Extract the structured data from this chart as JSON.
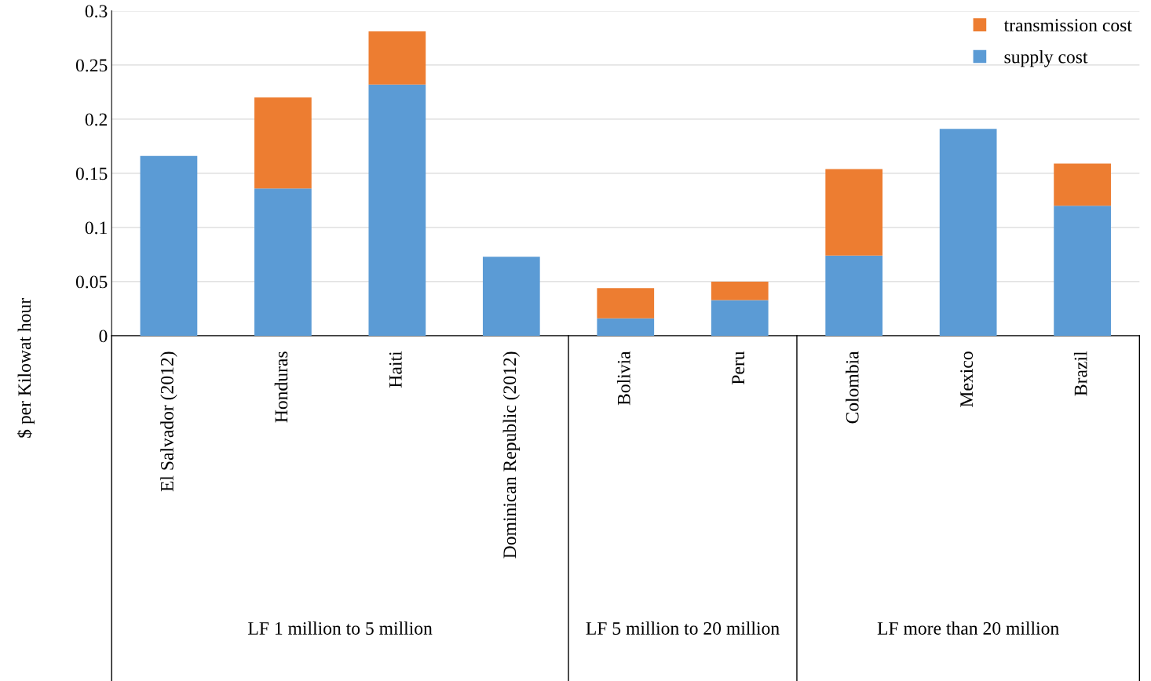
{
  "chart_data": {
    "type": "bar",
    "stacked": true,
    "ylabel": "$ per Kilowat hour",
    "categories": [
      "El Salvador (2012)",
      "Honduras",
      "Haiti",
      "Dominican Republic (2012)",
      "Bolivia",
      "Peru",
      "Colombia",
      "Mexico",
      "Brazil"
    ],
    "series": [
      {
        "name": "supply cost",
        "color": "#5b9bd5",
        "values": [
          0.166,
          0.136,
          0.232,
          0.073,
          0.016,
          0.033,
          0.074,
          0.191,
          0.12
        ]
      },
      {
        "name": "transmission cost",
        "color": "#ed7d31",
        "values": [
          null,
          0.084,
          0.049,
          null,
          0.028,
          0.017,
          0.08,
          null,
          0.039
        ]
      }
    ],
    "ylim": [
      0,
      0.3
    ],
    "yticks": [
      0,
      0.05,
      0.1,
      0.15,
      0.2,
      0.25,
      0.3
    ],
    "grid": "y",
    "legend": "top right",
    "annotations": [
      "LF 1 million to 5 million",
      "LF 5 million to 20 million",
      "LF more than 20 million"
    ]
  }
}
